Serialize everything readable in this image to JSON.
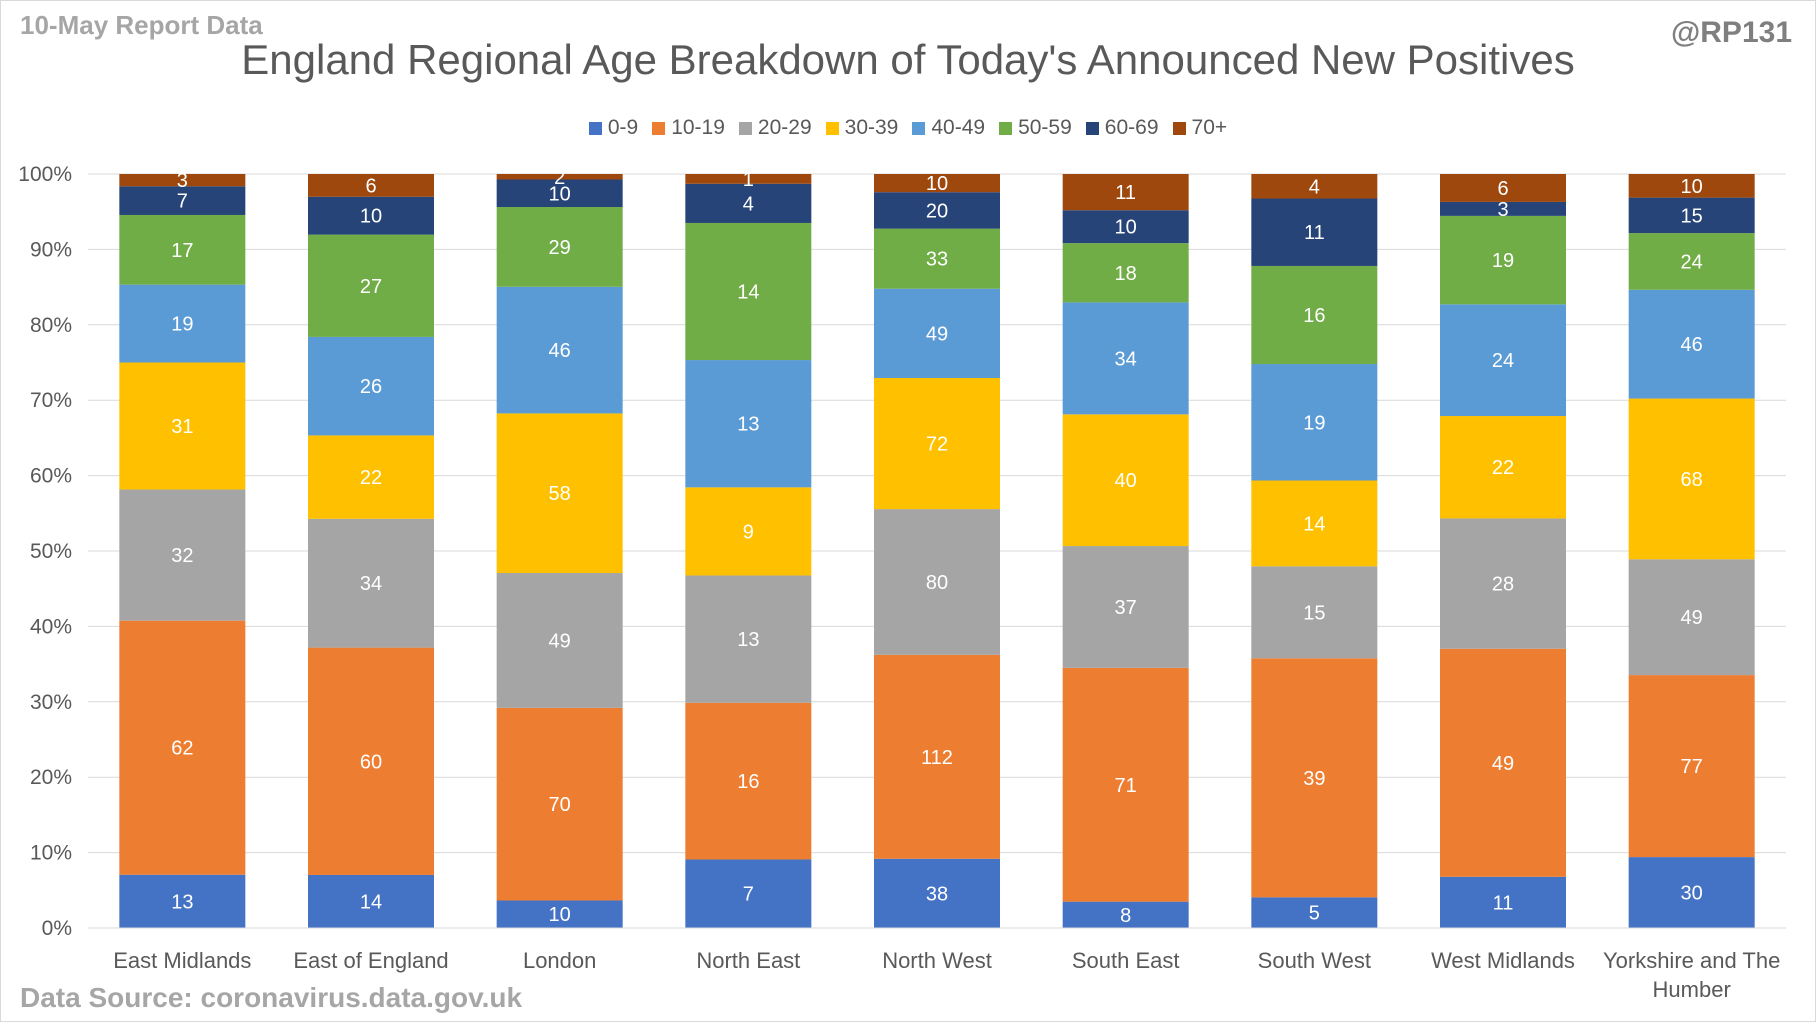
{
  "header": {
    "report_note": "10-May Report Data",
    "handle": "@RP131",
    "title": "England Regional Age Breakdown of Today's Announced New Positives"
  },
  "footer": {
    "source": "Data Source: coronavirus.data.gov.uk"
  },
  "chart_data": {
    "type": "bar",
    "stacked": "percent",
    "title": "England Regional Age Breakdown of Today's Announced New Positives",
    "xlabel": "",
    "ylabel": "",
    "ylim": [
      0,
      100
    ],
    "y_ticks": [
      "0%",
      "10%",
      "20%",
      "30%",
      "40%",
      "50%",
      "60%",
      "70%",
      "80%",
      "90%",
      "100%"
    ],
    "grid": true,
    "legend_position": "top",
    "categories": [
      [
        "East Midlands"
      ],
      [
        "East of England"
      ],
      [
        "London"
      ],
      [
        "North East"
      ],
      [
        "North West"
      ],
      [
        "South East"
      ],
      [
        "South West"
      ],
      [
        "West Midlands"
      ],
      [
        "Yorkshire and The",
        "Humber"
      ]
    ],
    "series": [
      {
        "name": "0-9",
        "color": "#4472c4",
        "values": [
          13,
          14,
          10,
          7,
          38,
          8,
          5,
          11,
          30
        ]
      },
      {
        "name": "10-19",
        "color": "#ed7d31",
        "values": [
          62,
          60,
          70,
          16,
          112,
          71,
          39,
          49,
          77
        ]
      },
      {
        "name": "20-29",
        "color": "#a5a5a5",
        "values": [
          32,
          34,
          49,
          13,
          80,
          37,
          15,
          28,
          49
        ]
      },
      {
        "name": "30-39",
        "color": "#ffc000",
        "values": [
          31,
          22,
          58,
          9,
          72,
          40,
          14,
          22,
          68
        ]
      },
      {
        "name": "40-49",
        "color": "#5b9bd5",
        "values": [
          19,
          26,
          46,
          13,
          49,
          34,
          19,
          24,
          46
        ]
      },
      {
        "name": "50-59",
        "color": "#70ad47",
        "values": [
          17,
          27,
          29,
          14,
          33,
          18,
          16,
          19,
          24
        ]
      },
      {
        "name": "60-69",
        "color": "#264478",
        "values": [
          7,
          10,
          10,
          4,
          20,
          10,
          11,
          3,
          15
        ]
      },
      {
        "name": "70+",
        "color": "#9e480e",
        "values": [
          3,
          6,
          2,
          1,
          10,
          11,
          4,
          6,
          10
        ]
      }
    ]
  }
}
